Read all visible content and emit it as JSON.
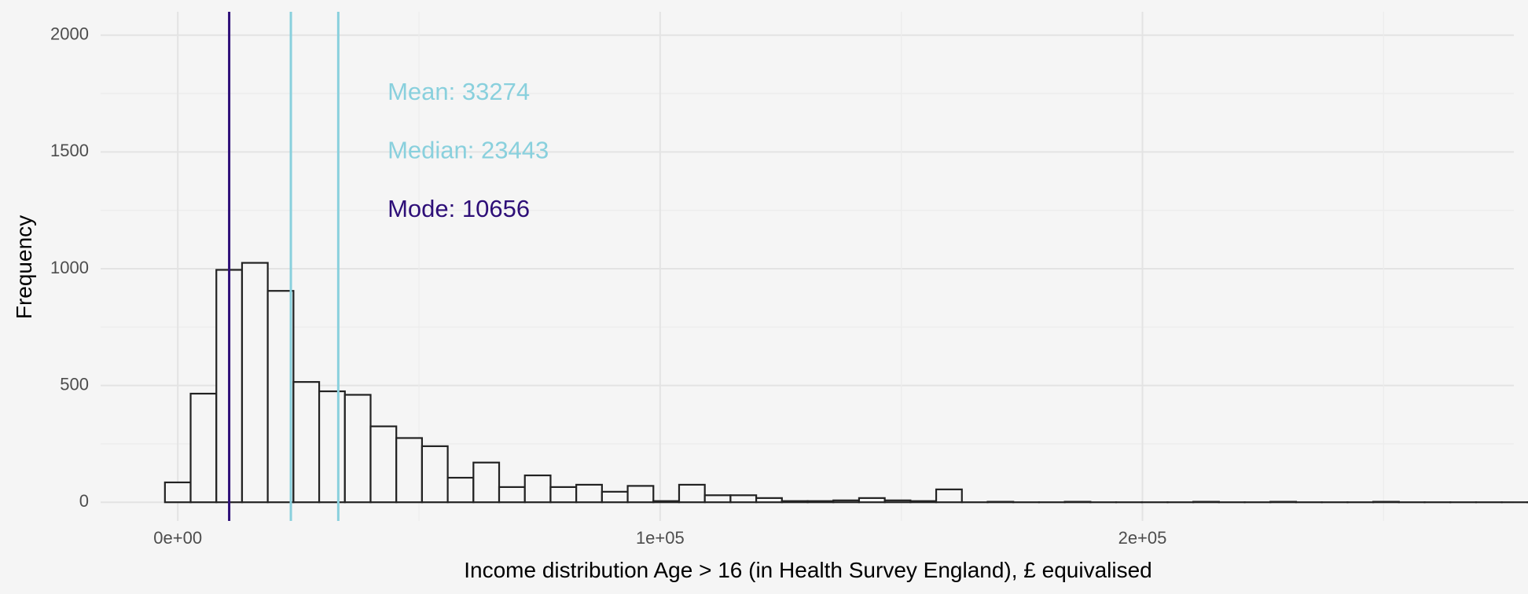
{
  "chart_data": {
    "type": "bar",
    "subtype": "histogram",
    "xlabel": "Income distribution Age > 16 (in Health Survey England), £ equivalised",
    "ylabel": "Frequency",
    "xlim": [
      -16000,
      277000
    ],
    "ylim": [
      -80,
      2100
    ],
    "x_ticks": [
      {
        "value": 0,
        "label": "0e+00"
      },
      {
        "value": 100000,
        "label": "1e+05"
      },
      {
        "value": 200000,
        "label": "2e+05"
      }
    ],
    "y_ticks": [
      {
        "value": 0,
        "label": "0"
      },
      {
        "value": 500,
        "label": "500"
      },
      {
        "value": 1000,
        "label": "1000"
      },
      {
        "value": 1500,
        "label": "1500"
      },
      {
        "value": 2000,
        "label": "2000"
      }
    ],
    "grid": true,
    "bin_width": 5330,
    "bins_start": -2665,
    "values": [
      85,
      465,
      995,
      1025,
      905,
      515,
      475,
      460,
      325,
      275,
      240,
      105,
      170,
      65,
      115,
      65,
      75,
      45,
      70,
      5,
      75,
      30,
      30,
      18,
      5,
      5,
      8,
      18,
      8,
      5,
      55,
      0,
      2,
      0,
      0,
      2,
      0,
      0,
      0,
      0,
      2,
      0,
      0,
      2,
      0,
      0,
      0,
      2,
      0,
      0,
      0,
      0,
      0,
      0,
      0,
      0,
      0,
      10
    ],
    "vlines": [
      {
        "name": "Mean",
        "value": 33274,
        "color": "#89d0dd"
      },
      {
        "name": "Median",
        "value": 23443,
        "color": "#89d0dd"
      },
      {
        "name": "Mode",
        "value": 10656,
        "color": "#2e0f78"
      }
    ],
    "annotations": [
      {
        "text": "Mean:  33274",
        "color": "#89d0dd"
      },
      {
        "text": "Median:  23443",
        "color": "#89d0dd"
      },
      {
        "text": "Mode:  10656",
        "color": "#2e0f78"
      }
    ],
    "annotation_anchor": {
      "x": 43500,
      "y_values": [
        1750,
        1500,
        1250
      ]
    }
  }
}
